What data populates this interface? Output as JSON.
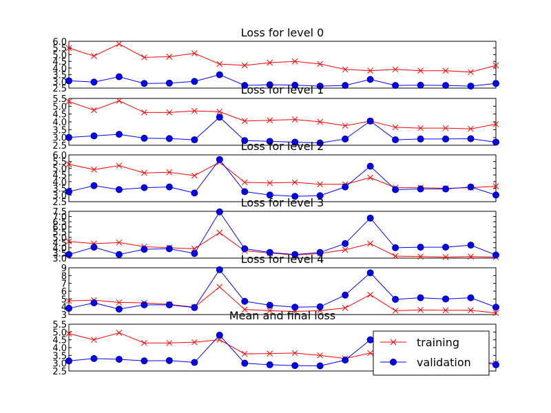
{
  "chart_data": [
    {
      "type": "line",
      "title": "Loss for level 0",
      "ylim": [
        2.5,
        6.0
      ],
      "yticks": [
        "2.5",
        "3.0",
        "3.5",
        "4.0",
        "4.5",
        "5.0",
        "5.5",
        "6.0"
      ],
      "x": [
        0,
        1,
        2,
        3,
        4,
        5,
        6,
        7,
        8,
        9,
        10,
        11,
        12,
        13,
        14,
        15,
        16,
        17
      ],
      "series": [
        {
          "name": "training",
          "values": [
            5.5,
            4.9,
            5.8,
            4.8,
            4.85,
            5.1,
            4.3,
            4.2,
            4.4,
            4.5,
            4.3,
            3.9,
            3.8,
            3.9,
            3.8,
            3.8,
            3.7,
            4.2
          ]
        },
        {
          "name": "validation",
          "values": [
            3.05,
            2.95,
            3.35,
            2.85,
            2.87,
            3.0,
            3.5,
            2.7,
            2.75,
            2.72,
            2.65,
            2.7,
            3.15,
            2.7,
            2.72,
            2.7,
            2.65,
            2.85
          ]
        }
      ]
    },
    {
      "type": "line",
      "title": "Loss for level 1",
      "ylim": [
        2.5,
        5.5
      ],
      "yticks": [
        "2.5",
        "3.0",
        "3.5",
        "4.0",
        "4.5",
        "5.0",
        "5.5"
      ],
      "x": [
        0,
        1,
        2,
        3,
        4,
        5,
        6,
        7,
        8,
        9,
        10,
        11,
        12,
        13,
        14,
        15,
        16,
        17
      ],
      "series": [
        {
          "name": "training",
          "values": [
            5.3,
            4.75,
            5.35,
            4.6,
            4.6,
            4.7,
            4.65,
            4.05,
            4.1,
            4.15,
            4.0,
            3.75,
            4.05,
            3.65,
            3.6,
            3.6,
            3.55,
            3.85
          ]
        },
        {
          "name": "validation",
          "values": [
            3.0,
            3.1,
            3.2,
            2.95,
            2.93,
            2.85,
            4.3,
            2.8,
            2.75,
            2.7,
            2.65,
            2.9,
            4.05,
            2.85,
            2.9,
            2.9,
            2.92,
            2.7
          ]
        }
      ]
    },
    {
      "type": "line",
      "title": "Loss for level 2",
      "ylim": [
        2.5,
        6.0
      ],
      "yticks": [
        "2.5",
        "3.0",
        "3.5",
        "4.0",
        "4.5",
        "5.0",
        "5.5",
        "6.0"
      ],
      "x": [
        0,
        1,
        2,
        3,
        4,
        5,
        6,
        7,
        8,
        9,
        10,
        11,
        12,
        13,
        14,
        15,
        16,
        17
      ],
      "series": [
        {
          "name": "training",
          "values": [
            5.3,
            4.9,
            5.2,
            4.65,
            4.7,
            4.45,
            5.45,
            3.95,
            3.9,
            3.95,
            3.8,
            3.8,
            4.3,
            3.55,
            3.55,
            3.5,
            3.55,
            3.65
          ]
        },
        {
          "name": "validation",
          "values": [
            3.25,
            3.7,
            3.4,
            3.55,
            3.6,
            3.15,
            5.65,
            3.25,
            3.0,
            2.9,
            2.95,
            3.6,
            5.15,
            3.4,
            3.45,
            3.45,
            3.6,
            3.0
          ]
        }
      ]
    },
    {
      "type": "line",
      "title": "Loss for level 3",
      "ylim": [
        3.0,
        7.5
      ],
      "yticks": [
        "3.0",
        "3.5",
        "4.0",
        "4.5",
        "5.0",
        "5.5",
        "6.0",
        "6.5",
        "7.0",
        "7.5"
      ],
      "x": [
        0,
        1,
        2,
        3,
        4,
        5,
        6,
        7,
        8,
        9,
        10,
        11,
        12,
        13,
        14,
        15,
        16,
        17
      ],
      "series": [
        {
          "name": "training",
          "values": [
            4.6,
            4.4,
            4.5,
            4.1,
            4.0,
            3.9,
            5.45,
            3.7,
            3.5,
            3.3,
            3.45,
            3.8,
            4.4,
            3.2,
            3.15,
            3.1,
            3.15,
            3.1
          ]
        },
        {
          "name": "validation",
          "values": [
            3.35,
            4.05,
            3.35,
            3.85,
            3.9,
            3.45,
            7.45,
            3.9,
            3.55,
            3.35,
            3.55,
            4.4,
            6.85,
            4.0,
            4.05,
            4.05,
            4.25,
            3.3
          ]
        }
      ]
    },
    {
      "type": "line",
      "title": "Loss for level 4",
      "ylim": [
        3,
        9
      ],
      "yticks": [
        "3",
        "4",
        "5",
        "6",
        "7",
        "8",
        "9"
      ],
      "x": [
        0,
        1,
        2,
        3,
        4,
        5,
        6,
        7,
        8,
        9,
        10,
        11,
        12,
        13,
        14,
        15,
        16,
        17
      ],
      "series": [
        {
          "name": "training",
          "values": [
            4.75,
            4.85,
            4.55,
            4.5,
            4.3,
            3.95,
            6.55,
            3.65,
            3.5,
            3.4,
            3.5,
            3.85,
            5.55,
            3.5,
            3.6,
            3.55,
            3.55,
            3.2
          ]
        },
        {
          "name": "validation",
          "values": [
            3.8,
            4.5,
            3.7,
            4.25,
            4.25,
            3.9,
            8.75,
            4.7,
            4.2,
            3.95,
            4.0,
            5.5,
            8.35,
            4.95,
            5.15,
            5.0,
            5.15,
            3.95
          ]
        }
      ]
    },
    {
      "type": "line",
      "title": "Mean and final loss",
      "ylim": [
        2.5,
        5.5
      ],
      "yticks": [
        "2.5",
        "3.0",
        "3.5",
        "4.0",
        "4.5",
        "5.0",
        "5.5"
      ],
      "x": [
        0,
        1,
        2,
        3,
        4,
        5,
        6,
        7,
        8,
        9,
        10,
        11,
        12,
        13,
        14,
        15,
        16,
        17
      ],
      "legend": {
        "position": "lower-right",
        "entries": [
          "training",
          "validation"
        ]
      },
      "series": [
        {
          "name": "training",
          "values": [
            4.9,
            4.5,
            4.95,
            4.3,
            4.3,
            4.35,
            4.5,
            3.6,
            3.62,
            3.65,
            3.5,
            3.3,
            3.65,
            3.2,
            3.2,
            3.1,
            3.15,
            3.0
          ]
        },
        {
          "name": "validation",
          "values": [
            3.15,
            3.3,
            3.25,
            3.15,
            3.17,
            3.05,
            4.8,
            3.0,
            2.9,
            2.85,
            2.83,
            3.2,
            4.5,
            3.1,
            3.15,
            3.1,
            3.2,
            2.9
          ]
        }
      ]
    }
  ],
  "colors": {
    "training": "#ff0000",
    "validation": "#0000ff",
    "validation_marker_edge": "#000080"
  }
}
